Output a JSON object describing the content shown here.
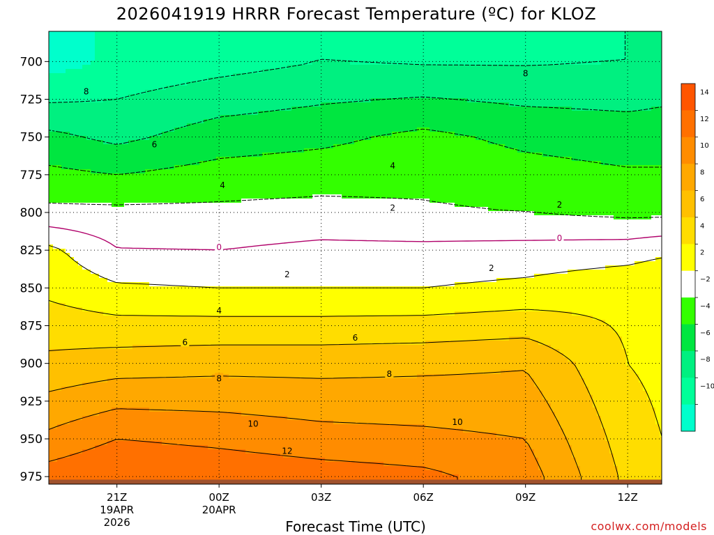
{
  "chart_data": {
    "type": "heatmap",
    "title": "2026041919 HRRR Forecast Temperature (ºC) for KLOZ",
    "xlabel": "Forecast Time (UTC)",
    "ylabel": "",
    "credit": "coolwx.com/models",
    "y_axis": {
      "unit": "hPa",
      "range": [
        980,
        680
      ],
      "ticks": [
        "700",
        "725",
        "750",
        "775",
        "800",
        "825",
        "850",
        "875",
        "900",
        "925",
        "950",
        "975"
      ]
    },
    "x_axis": {
      "unit": "hours since 19Z",
      "range": [
        0,
        18
      ],
      "ticks": [
        {
          "hour": 2,
          "label": "21Z",
          "date": "19APR",
          "year": "2026"
        },
        {
          "hour": 5,
          "label": "00Z",
          "date": "20APR",
          "year": ""
        },
        {
          "hour": 8,
          "label": "03Z",
          "date": "",
          "year": ""
        },
        {
          "hour": 11,
          "label": "06Z",
          "date": "",
          "year": ""
        },
        {
          "hour": 14,
          "label": "09Z",
          "date": "",
          "year": ""
        },
        {
          "hour": 17,
          "label": "12Z",
          "date": "",
          "year": ""
        }
      ]
    },
    "temperature_profile_hpa": [
      700,
      750,
      800,
      825,
      850,
      900,
      950,
      975
    ],
    "temperature_columns": [
      {
        "hour": 0,
        "temps": [
          -11,
          -5.5,
          -1.5,
          2.5,
          3.5,
          6.5,
          10.5,
          13
        ]
      },
      {
        "hour": 2,
        "temps": [
          -9.5,
          -6.5,
          -1.5,
          0.1,
          2.3,
          7,
          12,
          14
        ]
      },
      {
        "hour": 5,
        "temps": [
          -8.8,
          -5,
          -1.5,
          0,
          2,
          7.3,
          11.5,
          13.5
        ]
      },
      {
        "hour": 8,
        "temps": [
          -8,
          -4.5,
          -1.3,
          0.5,
          2,
          7.3,
          10.8,
          13
        ]
      },
      {
        "hour": 11,
        "temps": [
          -8.2,
          -3.5,
          -1.7,
          0.5,
          2,
          7.5,
          10.5,
          12.5
        ]
      },
      {
        "hour": 14,
        "temps": [
          -8.2,
          -4.5,
          -2,
          0.7,
          2.5,
          7.8,
          10,
          11
        ]
      },
      {
        "hour": 17,
        "temps": [
          -8,
          -5,
          -2.5,
          1,
          3.5,
          4,
          5,
          5.5
        ]
      },
      {
        "hour": 18,
        "temps": [
          -7.5,
          -5,
          -2.5,
          1.5,
          4,
          3.5,
          4,
          4.5
        ]
      }
    ],
    "color_levels": [
      {
        "lo": -99,
        "hi": -10,
        "color": "#00ffcc"
      },
      {
        "lo": -10,
        "hi": -8,
        "color": "#00ff99"
      },
      {
        "lo": -8,
        "hi": -6,
        "color": "#00f080"
      },
      {
        "lo": -6,
        "hi": -4,
        "color": "#00e640"
      },
      {
        "lo": -4,
        "hi": -2,
        "color": "#33ff00"
      },
      {
        "lo": -2,
        "hi": 2,
        "color": "#ffffff"
      },
      {
        "lo": 2,
        "hi": 4,
        "color": "#ffff00"
      },
      {
        "lo": 4,
        "hi": 6,
        "color": "#ffdd00"
      },
      {
        "lo": 6,
        "hi": 8,
        "color": "#ffc000"
      },
      {
        "lo": 8,
        "hi": 10,
        "color": "#ffa800"
      },
      {
        "lo": 10,
        "hi": 12,
        "color": "#ff8c00"
      },
      {
        "lo": 12,
        "hi": 14,
        "color": "#ff7000"
      },
      {
        "lo": 14,
        "hi": 99,
        "color": "#ff5500"
      }
    ],
    "colorbar_ticks": [
      "14",
      "12",
      "10",
      "8",
      "6",
      "4",
      "2",
      "−2",
      "−4",
      "−6",
      "−8",
      "−10"
    ],
    "contour_labels": [
      {
        "text": "8",
        "hour": 1.1,
        "hpa": 720,
        "style": "dashed"
      },
      {
        "text": "8",
        "hour": 14.0,
        "hpa": 708,
        "style": "dashed"
      },
      {
        "text": "6",
        "hour": 3.1,
        "hpa": 755,
        "style": "dashed"
      },
      {
        "text": "4",
        "hour": 5.1,
        "hpa": 782,
        "style": "dashed"
      },
      {
        "text": "4",
        "hour": 10.1,
        "hpa": 769,
        "style": "dashed"
      },
      {
        "text": "2",
        "hour": 10.1,
        "hpa": 797,
        "style": "dashed"
      },
      {
        "text": "2",
        "hour": 15.0,
        "hpa": 795,
        "style": "dashed"
      },
      {
        "text": "0",
        "hour": 5.0,
        "hpa": 823,
        "style": "zero"
      },
      {
        "text": "0",
        "hour": 15.0,
        "hpa": 817,
        "style": "zero"
      },
      {
        "text": "2",
        "hour": 7.0,
        "hpa": 841,
        "style": "solid"
      },
      {
        "text": "2",
        "hour": 13.0,
        "hpa": 837,
        "style": "solid"
      },
      {
        "text": "4",
        "hour": 5.0,
        "hpa": 865,
        "style": "solid"
      },
      {
        "text": "6",
        "hour": 4.0,
        "hpa": 886,
        "style": "solid"
      },
      {
        "text": "6",
        "hour": 9.0,
        "hpa": 883,
        "style": "solid"
      },
      {
        "text": "8",
        "hour": 5.0,
        "hpa": 910,
        "style": "solid"
      },
      {
        "text": "8",
        "hour": 10.0,
        "hpa": 907,
        "style": "solid"
      },
      {
        "text": "10",
        "hour": 6.0,
        "hpa": 940,
        "style": "solid"
      },
      {
        "text": "10",
        "hour": 12.0,
        "hpa": 939,
        "style": "solid"
      },
      {
        "text": "12",
        "hour": 7.0,
        "hpa": 958,
        "style": "solid"
      }
    ],
    "ground": {
      "hpa": 977,
      "color": "#a0522d"
    }
  }
}
